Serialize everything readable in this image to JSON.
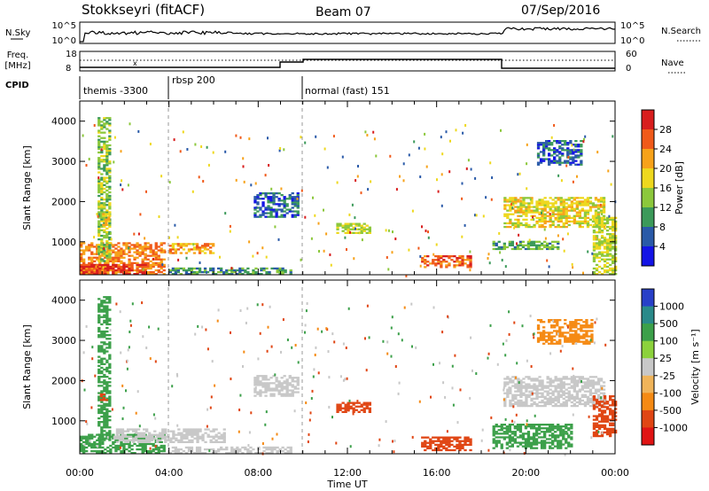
{
  "header": {
    "station": "Stokkseyri (fitACF)",
    "beam": "Beam 07",
    "date": "07/Sep/2016"
  },
  "top_panels": {
    "nsky": {
      "label": "N.Sky",
      "left_ticks": [
        "10^5",
        "10^0"
      ],
      "right_ticks": [
        "10^5",
        "10^0"
      ],
      "right_label": "N.Search",
      "line_color": "#000000"
    },
    "freq": {
      "label_line1": "Freq.",
      "label_line2": "[MHz]",
      "left_ticks": [
        "18",
        "8"
      ],
      "right_ticks": [
        "60",
        "0"
      ],
      "right_label": "Nave"
    },
    "cpid": {
      "label": "CPID",
      "segments": [
        {
          "label": "themis -3300",
          "start_hour": 0,
          "end_hour": 4
        },
        {
          "label": "rbsp 200",
          "start_hour": 4,
          "end_hour": 10
        },
        {
          "label": "normal (fast) 151",
          "start_hour": 10,
          "end_hour": 24
        }
      ]
    }
  },
  "chart_data": [
    {
      "type": "heatmap",
      "title": "",
      "xlabel": "Time UT",
      "ylabel": "Slant Range [km]",
      "xlim": [
        0,
        24
      ],
      "ylim": [
        180,
        4500
      ],
      "x_ticks": [
        "00:00",
        "04:00",
        "08:00",
        "12:00",
        "16:00",
        "20:00",
        "00:00"
      ],
      "y_ticks": [
        1000,
        2000,
        3000,
        4000
      ],
      "colorbar": {
        "label": "Power [dB]",
        "ticks": [
          "28",
          "24",
          "20",
          "16",
          "12",
          "8",
          "4"
        ],
        "colors": [
          "#d81e1e",
          "#f05a1a",
          "#f7a21a",
          "#eed81e",
          "#8cc83c",
          "#3c9a5a",
          "#2a5aa8",
          "#1414e6"
        ]
      },
      "regions": [
        {
          "t0": 0.0,
          "t1": 3.8,
          "r0": 180,
          "r1": 950,
          "value": 22
        },
        {
          "t0": 0.0,
          "t1": 3.0,
          "r0": 180,
          "r1": 420,
          "value": 28
        },
        {
          "t0": 0.8,
          "t1": 1.4,
          "r0": 500,
          "r1": 4100,
          "value": 12
        },
        {
          "t0": 1.0,
          "t1": 1.3,
          "r0": 1400,
          "r1": 1700,
          "value": 18
        },
        {
          "t0": 4.0,
          "t1": 6.0,
          "r0": 700,
          "r1": 950,
          "value": 20
        },
        {
          "t0": 4.0,
          "t1": 9.5,
          "r0": 180,
          "r1": 350,
          "value": 8
        },
        {
          "t0": 7.8,
          "t1": 9.8,
          "r0": 1600,
          "r1": 2200,
          "value": 6
        },
        {
          "t0": 11.5,
          "t1": 13.0,
          "r0": 1200,
          "r1": 1450,
          "value": 14
        },
        {
          "t0": 15.3,
          "t1": 17.5,
          "r0": 350,
          "r1": 650,
          "value": 24
        },
        {
          "t0": 19.0,
          "t1": 23.5,
          "r0": 1350,
          "r1": 2100,
          "value": 16
        },
        {
          "t0": 18.5,
          "t1": 21.5,
          "r0": 800,
          "r1": 1000,
          "value": 10
        },
        {
          "t0": 20.5,
          "t1": 22.5,
          "r0": 2900,
          "r1": 3500,
          "value": 6
        },
        {
          "t0": 23.0,
          "t1": 24.0,
          "r0": 180,
          "r1": 1600,
          "value": 14
        }
      ]
    },
    {
      "type": "heatmap",
      "title": "",
      "xlabel": "Time UT",
      "ylabel": "Slant Range [km]",
      "xlim": [
        0,
        24
      ],
      "ylim": [
        180,
        4500
      ],
      "x_ticks": [
        "00:00",
        "04:00",
        "08:00",
        "12:00",
        "16:00",
        "20:00",
        "00:00"
      ],
      "y_ticks": [
        1000,
        2000,
        3000,
        4000
      ],
      "colorbar": {
        "label": "Velocity [m s⁻¹]",
        "ticks": [
          "1000",
          "500",
          "100",
          "25",
          "-25",
          "-100",
          "-500",
          "-1000"
        ],
        "colors": [
          "#2840c8",
          "#2a8a8a",
          "#3ca04a",
          "#8cd23c",
          "#c8c8c8",
          "#f0b45a",
          "#f58a14",
          "#e04614",
          "#e01414"
        ]
      },
      "regions": [
        {
          "t0": 0.0,
          "t1": 3.8,
          "r0": 180,
          "r1": 650,
          "value": 100
        },
        {
          "t0": 0.8,
          "t1": 1.4,
          "r0": 500,
          "r1": 4100,
          "value": 100
        },
        {
          "t0": 0.9,
          "t1": 1.2,
          "r0": 1500,
          "r1": 1700,
          "value": -500
        },
        {
          "t0": 1.5,
          "t1": 6.5,
          "r0": 450,
          "r1": 800,
          "value": 0
        },
        {
          "t0": 4.0,
          "t1": 9.5,
          "r0": 180,
          "r1": 330,
          "value": 0
        },
        {
          "t0": 7.8,
          "t1": 9.8,
          "r0": 1600,
          "r1": 2100,
          "value": 0
        },
        {
          "t0": 11.5,
          "t1": 13.0,
          "r0": 1200,
          "r1": 1450,
          "value": -500
        },
        {
          "t0": 15.3,
          "t1": 17.5,
          "r0": 250,
          "r1": 600,
          "value": -500
        },
        {
          "t0": 19.0,
          "t1": 23.5,
          "r0": 1350,
          "r1": 2100,
          "value": 0
        },
        {
          "t0": 20.5,
          "t1": 23.0,
          "r0": 2900,
          "r1": 3500,
          "value": -100
        },
        {
          "t0": 18.5,
          "t1": 22.0,
          "r0": 300,
          "r1": 900,
          "value": 100
        },
        {
          "t0": 23.0,
          "t1": 24.0,
          "r0": 600,
          "r1": 1600,
          "value": -500
        }
      ]
    }
  ],
  "time_axis": {
    "label": "Time UT",
    "ticks": [
      "00:00",
      "04:00",
      "08:00",
      "12:00",
      "16:00",
      "20:00",
      "00:00"
    ]
  }
}
